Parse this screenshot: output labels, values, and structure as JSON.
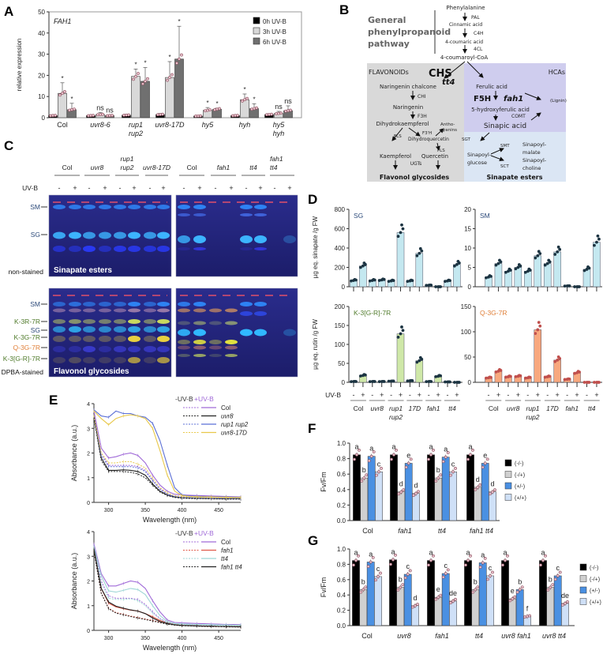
{
  "figure": {
    "panel_labels": [
      "A",
      "B",
      "C",
      "D",
      "E",
      "F",
      "G"
    ]
  },
  "chart_data": [
    {
      "id": "A",
      "type": "bar",
      "title": "FAH1",
      "xlabel": "",
      "ylabel": "relative expression",
      "ylim": [
        0,
        50
      ],
      "yticks": [
        "0",
        "10",
        "20",
        "30",
        "40",
        "50"
      ],
      "categories": [
        [
          "Col"
        ],
        [
          "uvr8-6"
        ],
        [
          "rup1",
          "rup2"
        ],
        [
          "uvr8-17D"
        ],
        [
          "hy5"
        ],
        [
          "hyh"
        ],
        [
          "hy5",
          "hyh"
        ]
      ],
      "series": [
        {
          "name": "0h UV-B",
          "color": "#000000",
          "values": [
            1.0,
            1.0,
            1.2,
            1.5,
            0.8,
            1.0,
            1.5
          ],
          "errors": [
            0.2,
            0.3,
            0.4,
            0.5,
            0.3,
            0.3,
            0.4
          ]
        },
        {
          "name": "3h UV-B",
          "color": "#d9d9d9",
          "values": [
            11.5,
            1.5,
            19.5,
            19.0,
            3.5,
            8.5,
            2.0
          ],
          "errors": [
            5,
            1,
            3.5,
            7.5,
            1.3,
            2.7,
            1
          ]
        },
        {
          "name": "6h UV-B",
          "color": "#707070",
          "values": [
            3.8,
            1.0,
            17.2,
            27.7,
            4.0,
            4.3,
            3.3
          ],
          "errors": [
            3,
            0.3,
            6.5,
            15.5,
            0.5,
            2.3,
            2.3
          ]
        }
      ],
      "annotations": [
        [
          "",
          "*",
          "*"
        ],
        [
          "",
          "ns",
          "ns"
        ],
        [
          "",
          "*",
          "*"
        ],
        [
          "",
          "*",
          "*"
        ],
        [
          "",
          "*",
          "*"
        ],
        [
          "",
          "*",
          "*"
        ],
        [
          "",
          "ns",
          "ns"
        ]
      ],
      "legend": "top-right"
    },
    {
      "id": "D-SG",
      "type": "bar",
      "title": "SG",
      "title_color": "#2c4a7a",
      "bar_color": "#c4e8f0",
      "dot_color": "#1c3442",
      "ylim": [
        0,
        800
      ],
      "yticks": [
        "0",
        "200",
        "400",
        "600",
        "800"
      ],
      "values": [
        65,
        215,
        65,
        70,
        60,
        560,
        60,
        345,
        15,
        0,
        60,
        230
      ]
    },
    {
      "id": "D-SM",
      "type": "bar",
      "title": "SM",
      "title_color": "#2c4a7a",
      "bar_color": "#c4e8f0",
      "dot_color": "#1c3442",
      "ylim": [
        0,
        20
      ],
      "yticks": [
        "0",
        "5",
        "10",
        "15",
        "20"
      ],
      "values": [
        2.5,
        6,
        4,
        5,
        4,
        8,
        6,
        9,
        0.2,
        0,
        4.5,
        11.5
      ]
    },
    {
      "id": "D-K",
      "type": "bar",
      "title": "K-3[G-R]-7R",
      "title_color": "#4f7a2a",
      "bar_color": "#cfe8a8",
      "dot_color": "#1c3442",
      "ylim": [
        0,
        200
      ],
      "yticks": [
        "0",
        "50",
        "100",
        "150",
        "200"
      ],
      "values": [
        2,
        18,
        2,
        2,
        3,
        128,
        4,
        57,
        2,
        16,
        1,
        0
      ]
    },
    {
      "id": "D-Q",
      "type": "bar",
      "title": "Q-3G-7R",
      "title_color": "#e0803a",
      "bar_color": "#f8a87e",
      "dot_color": "#c0504d",
      "ylim": [
        0,
        150
      ],
      "yticks": [
        "0",
        "50",
        "100",
        "150"
      ],
      "values": [
        9,
        22,
        11,
        12,
        9,
        104,
        11,
        44,
        6,
        19,
        0,
        0
      ]
    },
    {
      "id": "E-top",
      "type": "line",
      "xlabel": "Wavelength (nm)",
      "ylabel": "Absorbance (a.u.)",
      "xlim": [
        280,
        480
      ],
      "ylim": [
        0,
        4
      ],
      "xticks": [
        "300",
        "350",
        "400",
        "450"
      ],
      "yticks": [
        "0",
        "1",
        "2",
        "3",
        "4"
      ],
      "x": [
        280,
        290,
        300,
        310,
        320,
        330,
        340,
        350,
        360,
        370,
        380,
        390,
        400,
        410,
        420,
        430,
        440,
        450,
        460,
        470,
        480
      ],
      "legend_header": [
        "-UV-B",
        "+UV-B"
      ],
      "series": [
        {
          "name": "Col",
          "color": "#a06ad8",
          "minus": [
            3.5,
            2.0,
            1.5,
            1.5,
            1.5,
            1.5,
            1.45,
            1.3,
            0.9,
            0.55,
            0.35,
            0.27,
            0.24,
            0.23,
            0.22,
            0.22,
            0.21,
            0.21,
            0.2,
            0.2,
            0.2
          ],
          "plus": [
            3.7,
            2.2,
            1.8,
            1.85,
            1.95,
            2.0,
            1.9,
            1.6,
            1.1,
            0.7,
            0.45,
            0.33,
            0.3,
            0.29,
            0.28,
            0.27,
            0.26,
            0.25,
            0.24,
            0.23,
            0.22
          ]
        },
        {
          "name": "uvr8",
          "color": "#222222",
          "minus": [
            3.4,
            1.7,
            1.25,
            1.25,
            1.25,
            1.22,
            1.15,
            1.0,
            0.7,
            0.42,
            0.28,
            0.2,
            0.17,
            0.16,
            0.15,
            0.15,
            0.14,
            0.14,
            0.13,
            0.13,
            0.13
          ],
          "plus": [
            3.5,
            1.8,
            1.3,
            1.3,
            1.32,
            1.3,
            1.25,
            1.1,
            0.75,
            0.45,
            0.3,
            0.22,
            0.19,
            0.18,
            0.17,
            0.16,
            0.16,
            0.15,
            0.15,
            0.15,
            0.15
          ]
        },
        {
          "name": "rup1 rup2",
          "color": "#5b6fd6",
          "minus": [
            3.5,
            1.9,
            1.45,
            1.45,
            1.45,
            1.45,
            1.4,
            1.25,
            0.88,
            0.52,
            0.33,
            0.24,
            0.2,
            0.19,
            0.18,
            0.18,
            0.17,
            0.17,
            0.17,
            0.16,
            0.16
          ],
          "plus": [
            3.75,
            3.5,
            3.45,
            3.7,
            3.6,
            3.6,
            3.5,
            3.45,
            3.2,
            2.5,
            1.5,
            0.6,
            0.3,
            0.26,
            0.25,
            0.24,
            0.23,
            0.22,
            0.22,
            0.21,
            0.21
          ]
        },
        {
          "name": "uvr8-17D",
          "color": "#e8c84a",
          "minus": [
            3.5,
            2.0,
            1.6,
            1.6,
            1.65,
            1.65,
            1.55,
            1.4,
            0.98,
            0.6,
            0.38,
            0.27,
            0.23,
            0.22,
            0.21,
            0.2,
            0.2,
            0.2,
            0.19,
            0.19,
            0.19
          ],
          "plus": [
            3.7,
            3.4,
            3.15,
            3.4,
            3.5,
            3.55,
            3.5,
            3.4,
            3.0,
            2.1,
            1.1,
            0.45,
            0.28,
            0.24,
            0.23,
            0.22,
            0.22,
            0.21,
            0.21,
            0.2,
            0.2
          ]
        }
      ]
    },
    {
      "id": "E-bottom",
      "type": "line",
      "xlabel": "Wavelength (nm)",
      "ylabel": "Absorbance (a.u.)",
      "xlim": [
        280,
        480
      ],
      "ylim": [
        0,
        4
      ],
      "xticks": [
        "300",
        "350",
        "400",
        "450"
      ],
      "yticks": [
        "0",
        "1",
        "2",
        "3",
        "4"
      ],
      "x": [
        280,
        290,
        300,
        310,
        320,
        330,
        340,
        350,
        360,
        370,
        380,
        390,
        400,
        410,
        420,
        430,
        440,
        450,
        460,
        470,
        480
      ],
      "legend_header": [
        "-UV-B",
        "+UV-B"
      ],
      "series": [
        {
          "name": "Col",
          "color": "#a06ad8",
          "minus": [
            3.4,
            2.0,
            1.4,
            1.3,
            1.3,
            1.3,
            1.25,
            1.05,
            0.75,
            0.48,
            0.32,
            0.27,
            0.25,
            0.24,
            0.23,
            0.23,
            0.22,
            0.22,
            0.21,
            0.21,
            0.2
          ],
          "plus": [
            3.5,
            2.3,
            1.8,
            1.8,
            1.9,
            2.0,
            1.95,
            1.7,
            1.2,
            0.75,
            0.42,
            0.32,
            0.3,
            0.29,
            0.28,
            0.27,
            0.26,
            0.25,
            0.24,
            0.24,
            0.23
          ]
        },
        {
          "name": "fah1",
          "color": "#e05a4a",
          "minus": [
            3.2,
            1.5,
            0.9,
            0.72,
            0.65,
            0.58,
            0.52,
            0.46,
            0.4,
            0.33,
            0.27,
            0.23,
            0.2,
            0.19,
            0.18,
            0.17,
            0.16,
            0.15,
            0.15,
            0.14,
            0.14
          ],
          "plus": [
            3.3,
            1.7,
            1.1,
            0.95,
            0.88,
            0.82,
            0.78,
            0.68,
            0.55,
            0.4,
            0.3,
            0.24,
            0.21,
            0.2,
            0.19,
            0.18,
            0.17,
            0.16,
            0.16,
            0.15,
            0.15
          ]
        },
        {
          "name": "tt4",
          "color": "#9fd6d6",
          "minus": [
            3.3,
            1.9,
            1.3,
            1.25,
            1.25,
            1.28,
            1.2,
            1.0,
            0.7,
            0.45,
            0.3,
            0.25,
            0.23,
            0.22,
            0.21,
            0.21,
            0.2,
            0.2,
            0.2,
            0.19,
            0.19
          ],
          "plus": [
            3.4,
            2.2,
            1.6,
            1.55,
            1.62,
            1.7,
            1.65,
            1.45,
            1.0,
            0.6,
            0.36,
            0.28,
            0.26,
            0.25,
            0.24,
            0.24,
            0.23,
            0.22,
            0.22,
            0.21,
            0.21
          ]
        },
        {
          "name": "fah1 tt4",
          "color": "#222222",
          "minus": [
            3.2,
            1.5,
            0.88,
            0.7,
            0.63,
            0.56,
            0.5,
            0.44,
            0.38,
            0.31,
            0.25,
            0.21,
            0.19,
            0.18,
            0.17,
            0.16,
            0.15,
            0.15,
            0.14,
            0.14,
            0.13
          ],
          "plus": [
            3.3,
            1.7,
            1.15,
            0.98,
            0.9,
            0.83,
            0.78,
            0.68,
            0.5,
            0.36,
            0.28,
            0.22,
            0.2,
            0.19,
            0.18,
            0.17,
            0.17,
            0.16,
            0.16,
            0.15,
            0.15
          ]
        }
      ]
    },
    {
      "id": "F",
      "type": "bar",
      "ylabel": "Fv/Fm",
      "ylim": [
        0,
        1.0
      ],
      "yticks": [
        "0.0",
        "0.2",
        "0.4",
        "0.6",
        "0.8",
        "1.0"
      ],
      "categories": [
        "Col",
        "fah1",
        "tt4",
        "fah1 tt4"
      ],
      "series_names": [
        "(-/-)",
        "(-/+)",
        "(+/-)",
        "(+/+)"
      ],
      "series_colors": [
        "#000000",
        "#d0d0d0",
        "#4a90e2",
        "#cfe0f7"
      ],
      "values": [
        [
          0.85,
          0.55,
          0.83,
          0.63
        ],
        [
          0.85,
          0.37,
          0.74,
          0.35
        ],
        [
          0.85,
          0.55,
          0.82,
          0.63
        ],
        [
          0.85,
          0.43,
          0.74,
          0.37
        ]
      ],
      "letters": [
        [
          "a",
          "b",
          "a",
          "c"
        ],
        [
          "a",
          "d",
          "e",
          "d"
        ],
        [
          "a",
          "b",
          "a",
          "c"
        ],
        [
          "a",
          "d",
          "e",
          "d"
        ]
      ],
      "legend": "right"
    },
    {
      "id": "G",
      "type": "bar",
      "ylabel": "Fv/Fm",
      "ylim": [
        0,
        1.0
      ],
      "yticks": [
        "0.0",
        "0.2",
        "0.4",
        "0.6",
        "0.8",
        "1.0"
      ],
      "categories": [
        "Col",
        "uvr8",
        "fah1",
        "tt4",
        "uvr8 fah1",
        "uvr8 tt4"
      ],
      "series_names": [
        "(-/-)",
        "(-/+)",
        "(+/-)",
        "(+/+)"
      ],
      "series_colors": [
        "#000000",
        "#d0d0d0",
        "#4a90e2",
        "#cfe0f7"
      ],
      "values": [
        [
          0.85,
          0.47,
          0.83,
          0.64
        ],
        [
          0.86,
          0.5,
          0.67,
          0.26
        ],
        [
          0.85,
          0.37,
          0.68,
          0.32
        ],
        [
          0.85,
          0.47,
          0.82,
          0.65
        ],
        [
          0.85,
          0.35,
          0.47,
          0.12
        ],
        [
          0.85,
          0.5,
          0.65,
          0.29
        ]
      ],
      "letters": [
        [
          "a",
          "b",
          "a",
          "c"
        ],
        [
          "a",
          "b",
          "c",
          "d"
        ],
        [
          "a",
          "e",
          "c",
          "de"
        ],
        [
          "a",
          "b",
          "a",
          "c"
        ],
        [
          "a",
          "e",
          "b",
          "f"
        ],
        [
          "a",
          "b",
          "c",
          "de"
        ]
      ],
      "legend": "right"
    }
  ],
  "panel_d": {
    "ylabel_top": "µg eq. sinapate /g FW",
    "ylabel_bottom": "µg eq. rutin /g FW",
    "uvb_label": "UV-B",
    "signs": [
      "-",
      "+"
    ],
    "genotypes": [
      [
        "Col"
      ],
      [
        "uvr8"
      ],
      [
        "rup1",
        "rup2"
      ],
      [
        "17D"
      ],
      [
        "fah1"
      ],
      [
        "tt4"
      ]
    ]
  },
  "pathway": {
    "general": [
      "General",
      "phenylpropanoid",
      "pathway"
    ],
    "phenylalanine": "Phenylalanine",
    "pal": "PAL",
    "cinnamic": "Cinnamic acid",
    "c4h": "C4H",
    "coumaric": "4-coumaric acid",
    "4cl": "4CL",
    "coumaroylcoa": "4-coumaroyl-CoA",
    "flavonoids": "FLAVONOIDs",
    "chs": "CHS",
    "tt4": "tt4",
    "hcas": "HCAs",
    "naringenin_chalcone": "Naringenin chalcone",
    "chi": "CHI",
    "naringenin": "Naringenin",
    "f3h": "F3H",
    "dihydrokaempferol": "Dihydrokaempferol",
    "antho1": "Antho-",
    "antho2": "cyanins",
    "fls1": "FLS",
    "f3prime": "F3'H",
    "dihydroquercetin": "Dihydroquercetin",
    "fls2": "FLS",
    "kaempferol": "Kaempferol",
    "quercetin": "Quercetin",
    "ugts": "UGTs",
    "flavonol_glycosides": "Flavonol glycosides",
    "ferulic": "Ferulic acid",
    "f5h": "F5H",
    "fah1": "fah1",
    "lignin": "(Lignin)",
    "hydroxyferulic": "5-hydroxyferulic acid",
    "comt": "COMT",
    "sinapic": "Sinapic acid",
    "sgt": "SGT",
    "sinapoyl_glucose": [
      "Sinapoyl-",
      "glucose"
    ],
    "smt": "SMT",
    "sct": "SCT",
    "sinapoyl_malate": [
      "Sinapoyl-",
      "malate"
    ],
    "sinapoyl_choline": [
      "Sinapoyl-",
      "choline"
    ],
    "sinapate_esters": "Sinapate esters"
  },
  "gels": {
    "uvb_label": "UV-B",
    "signs": [
      "-",
      "+"
    ],
    "left_genotypes": [
      [
        "Col"
      ],
      [
        "uvr8"
      ],
      [
        "rup1",
        "rup2"
      ],
      [
        "uvr8-17D"
      ]
    ],
    "right_genotypes": [
      [
        "Col"
      ],
      [
        "fah1"
      ],
      [
        "tt4"
      ],
      [
        "fah1",
        "tt4"
      ]
    ],
    "top_markers": [
      "SM",
      "SG"
    ],
    "bottom_markers": [
      "SM",
      "K-3R-7R",
      "SG",
      "K-3G-7R",
      "Q-3G-7R",
      "K-3[G-R]-7R"
    ],
    "top_condition": "non-stained",
    "bottom_condition": "DPBA-stained",
    "top_caption": "Sinapate esters",
    "bottom_caption": "Flavonol glycosides"
  }
}
